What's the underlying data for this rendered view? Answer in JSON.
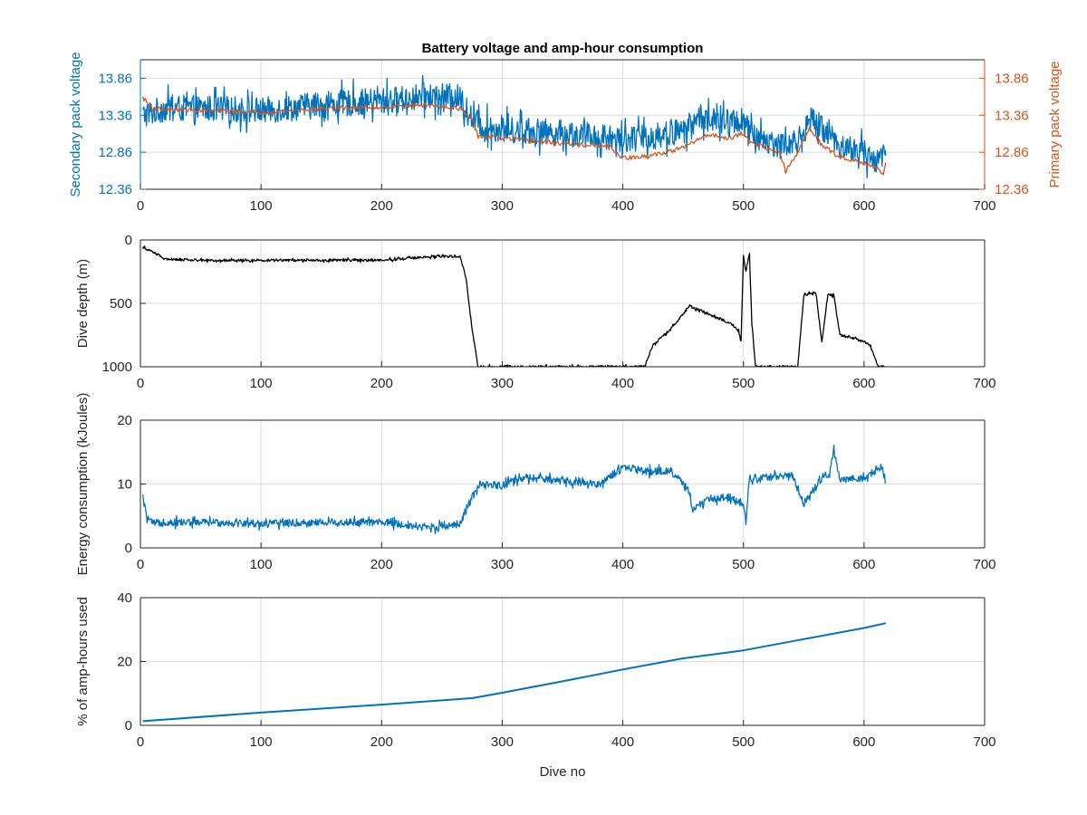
{
  "figure": {
    "title": "Battery voltage and amp-hour consumption"
  },
  "colors": {
    "secondary": "#0072BD",
    "primary": "#D95319",
    "depth": "#000000",
    "axis": "#262626",
    "grid": "#dcdcdc"
  },
  "chart_data": [
    {
      "type": "line",
      "xlabel": "",
      "ylabel": "Secondary pack voltage",
      "ylabel_right": "Primary pack voltage",
      "xlim": [
        0,
        700
      ],
      "ylim": [
        12.36,
        14.11
      ],
      "ylim_right": [
        12.36,
        14.11
      ],
      "x_ticks": [
        0,
        100,
        200,
        300,
        400,
        500,
        600,
        700
      ],
      "y_ticks": [
        12.36,
        12.86,
        13.36,
        13.86
      ],
      "y_tick_labels": [
        "12.36",
        "12.86",
        "13.36",
        "13.86"
      ],
      "y_ticks_right": [
        12.36,
        12.86,
        13.36,
        13.86
      ],
      "y_tick_labels_right": [
        "12.36",
        "12.86",
        "13.36",
        "13.86"
      ],
      "grid": true,
      "series": [
        {
          "axis": "left",
          "style": "noisy",
          "noise_amplitude": 0.18,
          "x": [
            2,
            20,
            60,
            100,
            150,
            200,
            240,
            265,
            275,
            285,
            300,
            350,
            395,
            420,
            450,
            465,
            480,
            500,
            505,
            515,
            530,
            545,
            555,
            565,
            580,
            600,
            610,
            618
          ],
          "y": [
            13.36,
            13.45,
            13.45,
            13.42,
            13.5,
            13.55,
            13.62,
            13.6,
            13.3,
            13.2,
            13.17,
            13.12,
            13.05,
            13.05,
            13.15,
            13.35,
            13.25,
            13.3,
            13.1,
            13.05,
            12.95,
            13.0,
            13.3,
            13.2,
            12.95,
            12.85,
            12.75,
            12.85
          ]
        },
        {
          "axis": "right",
          "style": "step",
          "noise_amplitude": 0.03,
          "x": [
            2,
            10,
            60,
            100,
            150,
            200,
            240,
            265,
            275,
            280,
            300,
            350,
            390,
            395,
            400,
            420,
            450,
            470,
            490,
            500,
            505,
            515,
            530,
            535,
            545,
            555,
            565,
            580,
            600,
            610,
            616,
            618
          ],
          "y": [
            13.6,
            13.45,
            13.42,
            13.4,
            13.45,
            13.47,
            13.5,
            13.45,
            13.3,
            13.08,
            13.05,
            12.98,
            12.93,
            12.85,
            12.78,
            12.8,
            12.92,
            13.1,
            13.05,
            13.12,
            13.0,
            12.95,
            12.85,
            12.6,
            12.85,
            13.2,
            12.95,
            12.8,
            12.72,
            12.65,
            12.55,
            12.75
          ]
        }
      ]
    },
    {
      "type": "line",
      "xlabel": "",
      "ylabel": "Dive depth (m)",
      "xlim": [
        0,
        700
      ],
      "ylim": [
        0,
        1000
      ],
      "y_reversed": true,
      "x_ticks": [
        0,
        100,
        200,
        300,
        400,
        500,
        600,
        700
      ],
      "y_ticks": [
        0,
        500,
        1000
      ],
      "y_tick_labels": [
        "0",
        "500",
        "1000"
      ],
      "grid": true,
      "series": [
        {
          "style": "noisy",
          "noise_amplitude": 10,
          "x": [
            2,
            10,
            20,
            50,
            100,
            150,
            200,
            240,
            265,
            270,
            275,
            280,
            300,
            350,
            400,
            418,
            425,
            440,
            455,
            470,
            490,
            496,
            498,
            500,
            502,
            505,
            507,
            510,
            515,
            520,
            545,
            550,
            555,
            560,
            565,
            570,
            575,
            580,
            600,
            605,
            612,
            616,
            618
          ],
          "y": [
            60,
            90,
            150,
            160,
            160,
            160,
            160,
            130,
            130,
            300,
            700,
            1000,
            1000,
            1000,
            1000,
            1000,
            830,
            700,
            520,
            580,
            660,
            720,
            800,
            120,
            250,
            110,
            650,
            1000,
            1000,
            1000,
            1000,
            440,
            420,
            420,
            800,
            430,
            440,
            750,
            800,
            830,
            1000,
            1000,
            1000
          ]
        }
      ]
    },
    {
      "type": "line",
      "xlabel": "",
      "ylabel": "Energy consumption (kJoules)",
      "xlim": [
        0,
        700
      ],
      "ylim": [
        0,
        20
      ],
      "x_ticks": [
        0,
        100,
        200,
        300,
        400,
        500,
        600,
        700
      ],
      "y_ticks": [
        0,
        10,
        20
      ],
      "y_tick_labels": [
        "0",
        "10",
        "20"
      ],
      "grid": true,
      "series": [
        {
          "style": "noisy",
          "noise_amplitude": 0.6,
          "x": [
            2,
            5,
            10,
            20,
            50,
            100,
            150,
            200,
            240,
            265,
            270,
            275,
            282,
            300,
            320,
            350,
            380,
            400,
            420,
            440,
            455,
            458,
            470,
            490,
            500,
            502,
            505,
            520,
            540,
            550,
            555,
            565,
            572,
            575,
            580,
            600,
            615,
            618
          ],
          "y": [
            8,
            5,
            3.8,
            4,
            4,
            3.8,
            4,
            4,
            3.2,
            3.8,
            6,
            8,
            9.8,
            9.8,
            11,
            10.5,
            10,
            12.5,
            12,
            12,
            9,
            6,
            7.5,
            8,
            6.8,
            4,
            11,
            11,
            11.5,
            7,
            8,
            11,
            12,
            15.5,
            10.5,
            11,
            12.5,
            10.5
          ]
        }
      ]
    },
    {
      "type": "line",
      "xlabel": "Dive no",
      "ylabel": "% of amp-hours used",
      "xlim": [
        0,
        700
      ],
      "ylim": [
        0,
        40
      ],
      "x_ticks": [
        0,
        100,
        200,
        300,
        400,
        500,
        600,
        700
      ],
      "y_ticks": [
        0,
        20,
        40
      ],
      "y_tick_labels": [
        "0",
        "20",
        "40"
      ],
      "grid": true,
      "series": [
        {
          "style": "smooth",
          "x": [
            2,
            100,
            200,
            275,
            300,
            350,
            400,
            450,
            500,
            550,
            600,
            618
          ],
          "y": [
            1.3,
            4,
            6.5,
            8.5,
            10.2,
            13.8,
            17.5,
            21,
            23.5,
            27,
            30.5,
            32
          ]
        }
      ]
    }
  ]
}
